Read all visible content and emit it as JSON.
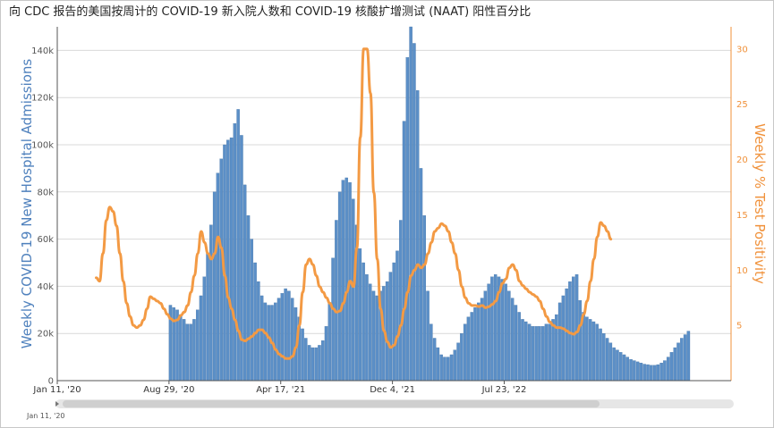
{
  "title": "向 CDC 报告的美国按周计的 COVID-19 新入院人数和 COVID-19 核酸扩增测试 (NAAT) 阳性百分比",
  "navigator": {
    "start_label": "Jan 11, '20"
  },
  "colors": {
    "bars": "#5b8fc7",
    "bar_edge": "#3f6fa3",
    "line": "#f39a44",
    "grid": "#d9d9d9",
    "axis_left": "#4f81bd",
    "axis_right": "#f0913a"
  },
  "chart_data": {
    "type": "bar",
    "ylabel": "Weekly COVID-19 New Hospital Admissions",
    "y2label": "Weekly % Test Positivity",
    "ylim": [
      0,
      150000
    ],
    "y2lim": [
      0,
      32
    ],
    "xlim_weeks": [
      0,
      199
    ],
    "x_tick_labels": [
      "Jan 11, '20",
      "Aug 29, '20",
      "Apr 17, '21",
      "Dec 4, '21",
      "Jul 23, '22"
    ],
    "y_tick_labels": [
      "0",
      "20k",
      "40k",
      "60k",
      "80k",
      "100k",
      "120k",
      "140k"
    ],
    "y2_tick_labels": [
      "5",
      "10",
      "15",
      "20",
      "25",
      "30"
    ],
    "grid": true,
    "series": [
      {
        "type": "bar",
        "axis": "left",
        "start_week": 33,
        "values": [
          32000,
          31000,
          30000,
          28000,
          26000,
          24000,
          24000,
          26000,
          30000,
          36000,
          44000,
          54000,
          66000,
          80000,
          88000,
          94000,
          100000,
          102000,
          103000,
          109000,
          115000,
          104000,
          83000,
          70000,
          60000,
          50000,
          42000,
          36000,
          33000,
          32000,
          32000,
          33000,
          35000,
          37000,
          39000,
          38000,
          35000,
          31000,
          27000,
          22000,
          18000,
          15000,
          14000,
          14000,
          15000,
          17000,
          23000,
          33000,
          52000,
          68000,
          80000,
          85000,
          86000,
          84000,
          77000,
          66000,
          56000,
          50000,
          45000,
          41000,
          38000,
          36000,
          38000,
          40000,
          42000,
          46000,
          50000,
          55000,
          68000,
          110000,
          137000,
          150000,
          143000,
          123000,
          90000,
          70000,
          38000,
          24000,
          18000,
          14000,
          11000,
          10000,
          10000,
          11000,
          13000,
          16000,
          20000,
          24000,
          27000,
          29000,
          31000,
          33000,
          35000,
          38000,
          41000,
          44000,
          45000,
          44000,
          43000,
          41000,
          38000,
          35000,
          32000,
          29000,
          26000,
          25000,
          24000,
          23000,
          23000,
          23000,
          23000,
          24000,
          24000,
          26000,
          28000,
          33000,
          36000,
          39000,
          42000,
          44000,
          45000,
          34000,
          29000,
          27000,
          26000,
          25000,
          24000,
          22000,
          20000,
          18000,
          16000,
          14000,
          13000,
          12000,
          11000,
          10000,
          9000,
          8500,
          8000,
          7500,
          7000,
          6800,
          6500,
          6500,
          6800,
          7500,
          8500,
          10000,
          12000,
          14000,
          16000,
          18000,
          19500,
          21000
        ]
      },
      {
        "type": "line",
        "axis": "right",
        "name": "Weekly % Test Positivity",
        "start_week": 11,
        "values": [
          9.3,
          9.0,
          11.5,
          14.5,
          15.7,
          15.3,
          14.0,
          11.5,
          9.0,
          7.0,
          5.8,
          5.0,
          4.8,
          5.0,
          5.5,
          6.5,
          7.6,
          7.4,
          7.2,
          7.0,
          6.5,
          6.0,
          5.6,
          5.4,
          5.5,
          5.9,
          6.2,
          6.8,
          8.0,
          9.5,
          11.5,
          13.5,
          12.5,
          11.5,
          11.0,
          11.5,
          13.0,
          12.0,
          9.5,
          7.5,
          6.5,
          5.5,
          4.5,
          3.7,
          3.6,
          3.8,
          4.0,
          4.3,
          4.6,
          4.6,
          4.3,
          3.9,
          3.4,
          2.8,
          2.4,
          2.2,
          2.0,
          2.0,
          2.2,
          3.0,
          5.0,
          8.0,
          10.5,
          11.0,
          10.5,
          9.5,
          8.5,
          8.0,
          7.5,
          7.0,
          6.5,
          6.2,
          6.3,
          7.0,
          8.0,
          9.0,
          8.5,
          12.0,
          22.0,
          30.0,
          30.0,
          26.0,
          17.0,
          11.0,
          6.5,
          4.5,
          3.5,
          3.0,
          3.2,
          4.0,
          5.0,
          6.5,
          8.0,
          9.5,
          10.0,
          10.5,
          10.2,
          10.5,
          11.5,
          12.5,
          13.5,
          13.8,
          14.2,
          14.0,
          13.5,
          12.5,
          11.5,
          10.0,
          8.5,
          7.5,
          7.0,
          6.8,
          6.8,
          6.7,
          6.8,
          6.6,
          6.7,
          6.9,
          7.2,
          8.0,
          8.8,
          9.2,
          10.2,
          10.5,
          10.0,
          9.0,
          8.6,
          8.3,
          8.0,
          7.8,
          7.6,
          7.2,
          6.5,
          5.8,
          5.3,
          5.0,
          4.8,
          4.8,
          4.7,
          4.5,
          4.3,
          4.2,
          4.4,
          5.0,
          6.0,
          7.2,
          9.0,
          11.0,
          13.0,
          14.3,
          14.0,
          13.5,
          12.8
        ]
      }
    ]
  }
}
